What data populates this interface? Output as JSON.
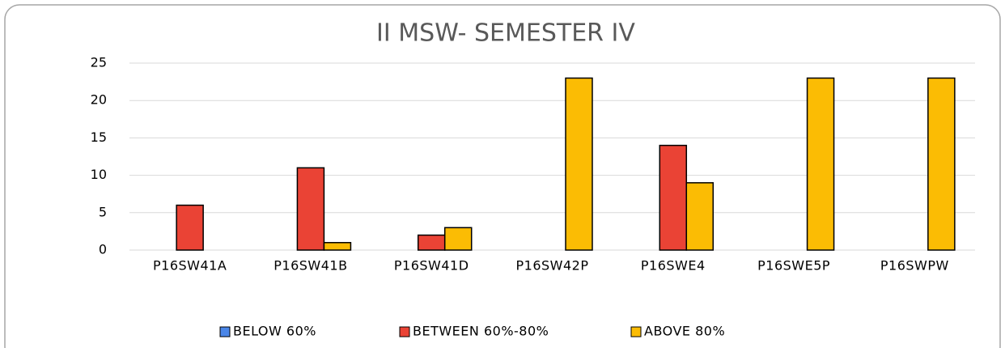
{
  "chart_data": {
    "type": "bar",
    "title": "II MSW- SEMESTER IV",
    "categories": [
      "P16SW41A",
      "P16SW41B",
      "P16SW41D",
      "P16SW42P",
      "P16SWE4",
      "P16SWE5P",
      "P16SWPW"
    ],
    "series": [
      {
        "name": "BELOW 60%",
        "color": "#4a86e8",
        "values": [
          0,
          0,
          0,
          0,
          0,
          0,
          0
        ]
      },
      {
        "name": "BETWEEN 60%-80%",
        "color": "#ea4335",
        "values": [
          6,
          11,
          2,
          0,
          14,
          0,
          0
        ]
      },
      {
        "name": "ABOVE 80%",
        "color": "#fbbc04",
        "values": [
          0,
          1,
          3,
          23,
          9,
          23,
          23
        ]
      }
    ],
    "ylim": [
      0,
      25
    ],
    "yticks": [
      0,
      5,
      10,
      15,
      20,
      25
    ],
    "grid": true,
    "legend": "bottom"
  }
}
